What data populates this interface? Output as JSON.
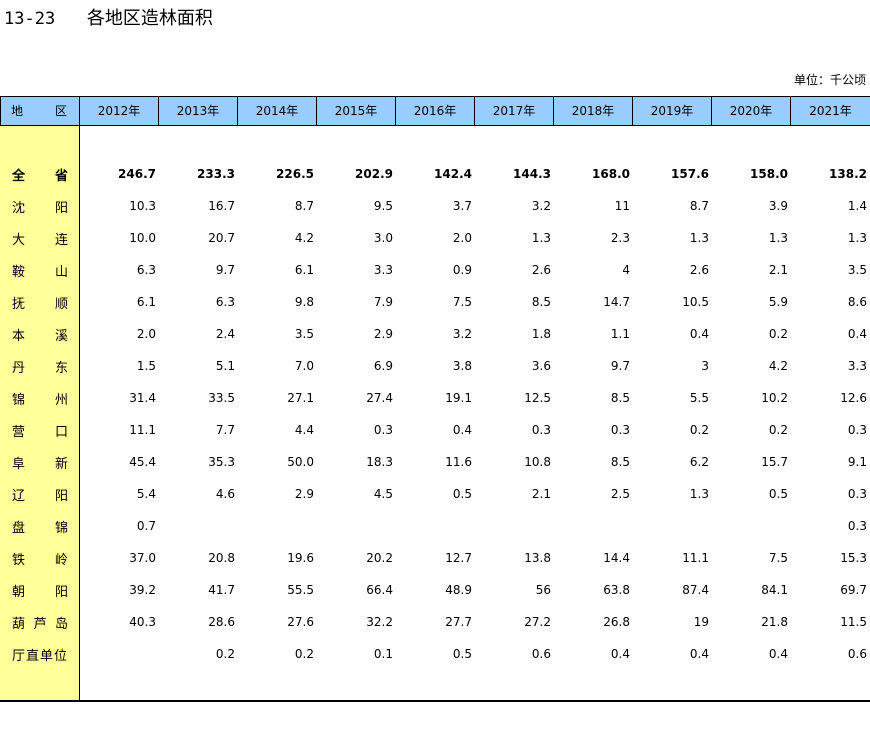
{
  "title": {
    "number": "13-23",
    "text": "各地区造林面积"
  },
  "unit": "单位：千公顷",
  "header": {
    "region_chars": [
      "地",
      "区"
    ],
    "years": [
      "2012年",
      "2013年",
      "2014年",
      "2015年",
      "2016年",
      "2017年",
      "2018年",
      "2019年",
      "2020年",
      "2021年"
    ]
  },
  "rows": [
    {
      "chars": [
        "全",
        "省"
      ],
      "total": true,
      "values": [
        "246.7",
        "233.3",
        "226.5",
        "202.9",
        "142.4",
        "144.3",
        "168.0",
        "157.6",
        "158.0",
        "138.2"
      ]
    },
    {
      "chars": [
        "沈",
        "阳"
      ],
      "values": [
        "10.3",
        "16.7",
        "8.7",
        "9.5",
        "3.7",
        "3.2",
        "11",
        "8.7",
        "3.9",
        "1.4"
      ]
    },
    {
      "chars": [
        "大",
        "连"
      ],
      "values": [
        "10.0",
        "20.7",
        "4.2",
        "3.0",
        "2.0",
        "1.3",
        "2.3",
        "1.3",
        "1.3",
        "1.3"
      ]
    },
    {
      "chars": [
        "鞍",
        "山"
      ],
      "values": [
        "6.3",
        "9.7",
        "6.1",
        "3.3",
        "0.9",
        "2.6",
        "4",
        "2.6",
        "2.1",
        "3.5"
      ]
    },
    {
      "chars": [
        "抚",
        "顺"
      ],
      "values": [
        "6.1",
        "6.3",
        "9.8",
        "7.9",
        "7.5",
        "8.5",
        "14.7",
        "10.5",
        "5.9",
        "8.6"
      ]
    },
    {
      "chars": [
        "本",
        "溪"
      ],
      "values": [
        "2.0",
        "2.4",
        "3.5",
        "2.9",
        "3.2",
        "1.8",
        "1.1",
        "0.4",
        "0.2",
        "0.4"
      ]
    },
    {
      "chars": [
        "丹",
        "东"
      ],
      "values": [
        "1.5",
        "5.1",
        "7.0",
        "6.9",
        "3.8",
        "3.6",
        "9.7",
        "3",
        "4.2",
        "3.3"
      ]
    },
    {
      "chars": [
        "锦",
        "州"
      ],
      "values": [
        "31.4",
        "33.5",
        "27.1",
        "27.4",
        "19.1",
        "12.5",
        "8.5",
        "5.5",
        "10.2",
        "12.6"
      ]
    },
    {
      "chars": [
        "营",
        "口"
      ],
      "values": [
        "11.1",
        "7.7",
        "4.4",
        "0.3",
        "0.4",
        "0.3",
        "0.3",
        "0.2",
        "0.2",
        "0.3"
      ]
    },
    {
      "chars": [
        "阜",
        "新"
      ],
      "values": [
        "45.4",
        "35.3",
        "50.0",
        "18.3",
        "11.6",
        "10.8",
        "8.5",
        "6.2",
        "15.7",
        "9.1"
      ]
    },
    {
      "chars": [
        "辽",
        "阳"
      ],
      "values": [
        "5.4",
        "4.6",
        "2.9",
        "4.5",
        "0.5",
        "2.1",
        "2.5",
        "1.3",
        "0.5",
        "0.3"
      ]
    },
    {
      "chars": [
        "盘",
        "锦"
      ],
      "values": [
        "0.7",
        "",
        "",
        "",
        "",
        "",
        "",
        "",
        "",
        "0.3"
      ]
    },
    {
      "chars": [
        "铁",
        "岭"
      ],
      "values": [
        "37.0",
        "20.8",
        "19.6",
        "20.2",
        "12.7",
        "13.8",
        "14.4",
        "11.1",
        "7.5",
        "15.3"
      ]
    },
    {
      "chars": [
        "朝",
        "阳"
      ],
      "values": [
        "39.2",
        "41.7",
        "55.5",
        "66.4",
        "48.9",
        "56",
        "63.8",
        "87.4",
        "84.1",
        "69.7"
      ]
    },
    {
      "chars": [
        "葫",
        "芦",
        "岛"
      ],
      "values": [
        "40.3",
        "28.6",
        "27.6",
        "32.2",
        "27.7",
        "27.2",
        "26.8",
        "19",
        "21.8",
        "11.5"
      ]
    },
    {
      "name": "厅直单位",
      "values": [
        "",
        "0.2",
        "0.2",
        "0.1",
        "0.5",
        "0.6",
        "0.4",
        "0.4",
        "0.4",
        "0.6"
      ]
    }
  ]
}
